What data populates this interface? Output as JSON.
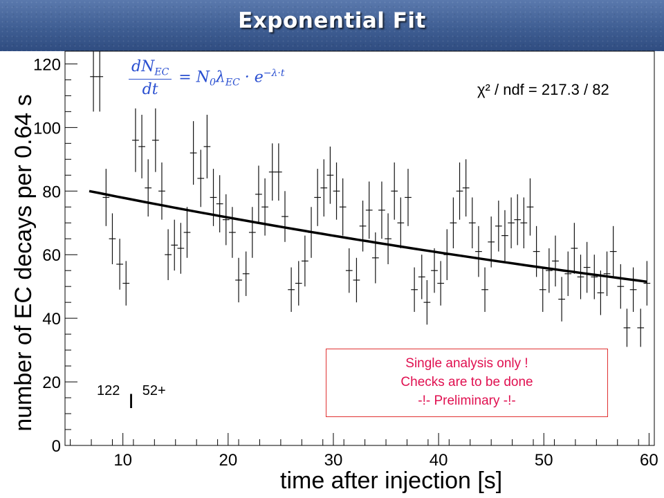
{
  "slide": {
    "title": "Exponential Fit"
  },
  "chart_data": {
    "type": "scatter",
    "title": "",
    "xlabel": "time after injection [s]",
    "ylabel": "number of EC decays per 0.64 s",
    "xlim": [
      4.5,
      60.5
    ],
    "ylim": [
      0,
      124
    ],
    "xticks": [
      10,
      20,
      30,
      40,
      50,
      60
    ],
    "yticks": [
      0,
      20,
      40,
      60,
      80,
      100,
      120
    ],
    "grid": false,
    "fit": {
      "formula_lhs_num": "dN",
      "formula_lhs_num_sub": "EC",
      "formula_lhs_den": "dt",
      "formula_rhs": "= N",
      "formula_rhs_sub0": "0",
      "formula_rhs_lambda": "λ",
      "formula_rhs_sub1": "EC",
      "formula_rhs_exp_base": " · e",
      "formula_rhs_exp": "−λ·t",
      "x_start": 6.8,
      "y_start": 80,
      "x_end": 59.8,
      "y_end": 51.5,
      "chi2_label": "χ² / ndf  =  217.3 / 82"
    },
    "series": [
      {
        "x": [
          7.2,
          7.8,
          8.4,
          9.0,
          9.7,
          10.3,
          11.2,
          11.8,
          12.4,
          13.1,
          13.7,
          14.3,
          14.9,
          15.5,
          16.1,
          16.7,
          17.4,
          18.0,
          18.6,
          19.2,
          19.8,
          20.4,
          21.0,
          21.7,
          22.3,
          22.9,
          23.5,
          24.2,
          24.8,
          25.4,
          26.0,
          26.7,
          27.3,
          27.9,
          28.5,
          29.1,
          29.7,
          30.3,
          30.9,
          31.5,
          32.2,
          32.8,
          33.4,
          34.0,
          34.6,
          35.2,
          35.8,
          36.4,
          37.1,
          37.7,
          38.4,
          38.9,
          39.6,
          40.2,
          40.8,
          41.4,
          42.0,
          42.6,
          43.2,
          43.8,
          44.4,
          45.0,
          45.7,
          46.3,
          46.9,
          47.5,
          48.1,
          48.7,
          49.3,
          49.9,
          50.5,
          51.1,
          51.7,
          52.3,
          52.9,
          53.5,
          54.1,
          54.8,
          55.4,
          56.0,
          56.6,
          57.3,
          57.9,
          58.5,
          59.2,
          59.8
        ],
        "y": [
          116,
          116,
          78,
          65,
          57,
          51,
          96,
          94,
          81,
          96,
          80,
          60,
          63,
          62,
          67,
          92,
          84,
          94,
          78,
          76,
          71,
          67,
          52,
          54,
          67,
          79,
          75,
          86,
          86,
          72,
          49,
          51,
          58,
          67,
          78,
          81,
          85,
          80,
          75,
          55,
          52,
          69,
          74,
          59,
          74,
          65,
          80,
          70,
          78,
          49,
          53,
          45,
          55,
          51,
          60,
          70,
          80,
          81,
          70,
          61,
          49,
          64,
          69,
          66,
          70,
          71,
          70,
          75,
          61,
          49,
          55,
          58,
          46,
          54,
          62,
          53,
          56,
          53,
          48,
          54,
          61,
          50,
          37,
          49,
          37,
          51
        ],
        "err": [
          11,
          11,
          9,
          8,
          8,
          7,
          10,
          10,
          9,
          10,
          9,
          8,
          8,
          8,
          8,
          10,
          9,
          10,
          9,
          9,
          8,
          8,
          7,
          7,
          8,
          9,
          9,
          9,
          9,
          8,
          7,
          7,
          8,
          8,
          9,
          9,
          9,
          9,
          9,
          7,
          7,
          8,
          9,
          8,
          9,
          8,
          9,
          8,
          9,
          7,
          7,
          7,
          7,
          7,
          8,
          8,
          9,
          9,
          8,
          8,
          7,
          8,
          8,
          8,
          8,
          8,
          8,
          9,
          8,
          7,
          7,
          8,
          7,
          7,
          8,
          7,
          8,
          7,
          7,
          7,
          8,
          7,
          6,
          7,
          6,
          7
        ]
      }
    ]
  },
  "annotations": {
    "isotope_mass": "122",
    "isotope_element": "I",
    "isotope_charge": "52+",
    "disclaimer_line1": "Single analysis only !",
    "disclaimer_line2": "Checks are to be done",
    "disclaimer_line3": "-!- Preliminary -!-"
  },
  "colors": {
    "title_bar": "#3f5e93",
    "formula": "#2a4fd0",
    "disclaimer_text": "#e01050",
    "disclaimer_border": "#e03030"
  }
}
